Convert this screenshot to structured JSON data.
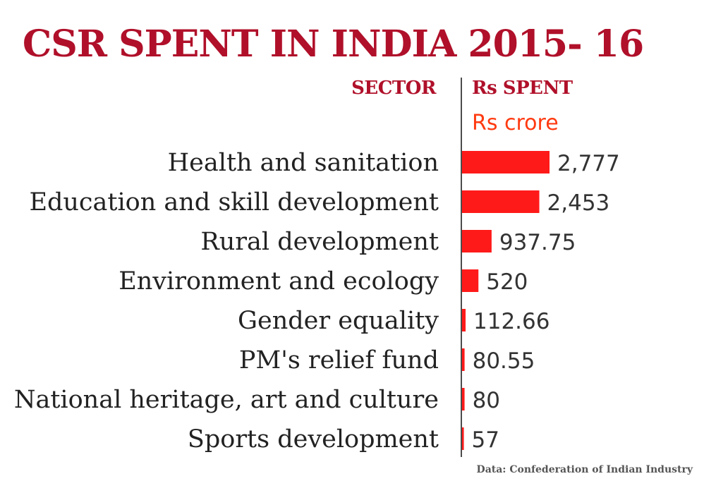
{
  "chart_data": {
    "type": "bar",
    "orientation": "horizontal",
    "title": "CSR SPENT IN INDIA 2015- 16",
    "category_header": "SECTOR",
    "value_header": "Rs SPENT",
    "unit": "Rs crore",
    "categories": [
      "Health and sanitation",
      "Education and skill development",
      "Rural development",
      "Environment and ecology",
      "Gender equality",
      "PM's relief fund",
      "National heritage, art and culture",
      "Sports development"
    ],
    "values": [
      2777,
      2453,
      937.75,
      520,
      112.66,
      80.55,
      80,
      57
    ],
    "value_labels": [
      "2,777",
      "2,453",
      "937.75",
      "520",
      "112.66",
      "80.55",
      "80",
      "57"
    ],
    "xlim": [
      0,
      2777
    ],
    "bar_color": "#ff1a1a",
    "source": "Data: Confederation of Indian Industry"
  }
}
